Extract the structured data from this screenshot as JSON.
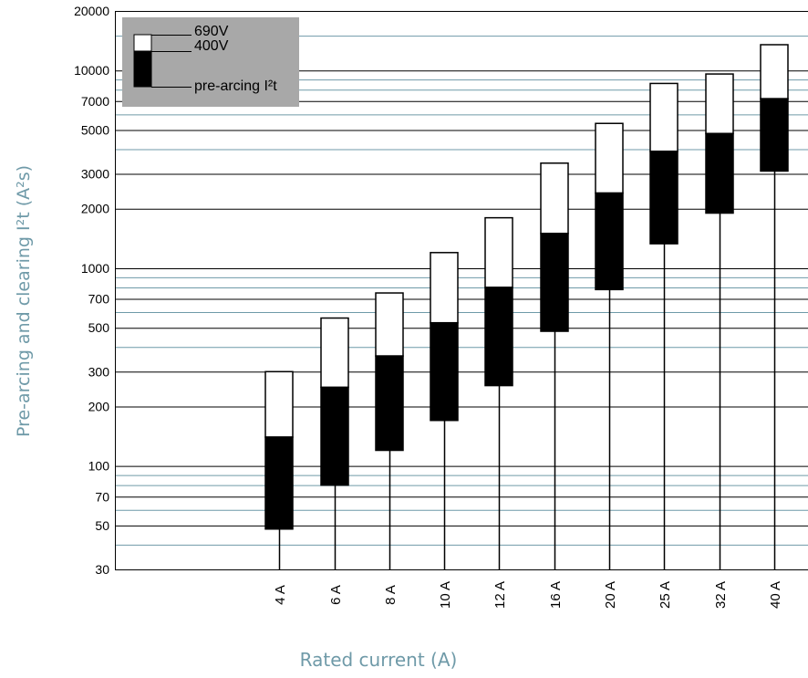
{
  "chart_data": {
    "type": "range-bar",
    "xlabel": "Rated current (A)",
    "ylabel": "Pre-arcing and clearing I²t (A²s)",
    "yscale": "log",
    "ylim": [
      30,
      20000
    ],
    "yticks": [
      30,
      50,
      70,
      100,
      200,
      300,
      500,
      700,
      1000,
      2000,
      3000,
      5000,
      7000,
      10000,
      20000
    ],
    "categories": [
      "4 A",
      "6 A",
      "8 A",
      "10 A",
      "12 A",
      "16 A",
      "20 A",
      "25 A",
      "32 A",
      "40 A"
    ],
    "series": [
      {
        "name": "pre-arcing I²t",
        "color": "#000000",
        "values": [
          [
            48,
            140
          ],
          [
            80,
            250
          ],
          [
            120,
            360
          ],
          [
            170,
            530
          ],
          [
            255,
            800
          ],
          [
            480,
            1500
          ],
          [
            780,
            2400
          ],
          [
            1330,
            3900
          ],
          [
            1900,
            4800
          ],
          [
            3100,
            7200
          ]
        ]
      },
      {
        "name": "400V",
        "color": "#000000",
        "values": [
          140,
          250,
          360,
          530,
          800,
          1500,
          2400,
          3900,
          4800,
          7200
        ]
      },
      {
        "name": "690V",
        "color": "#ffffff",
        "values": [
          300,
          560,
          750,
          1200,
          1800,
          3400,
          5400,
          8600,
          9600,
          13500
        ]
      }
    ],
    "legend": {
      "position": "top-left",
      "background": "#a8a8a8",
      "entries": [
        "690V",
        "400V",
        "pre-arcing I²t"
      ]
    },
    "grid": true,
    "gridline_colors": {
      "major": "#000000",
      "minor": "#6f9aa8"
    }
  }
}
